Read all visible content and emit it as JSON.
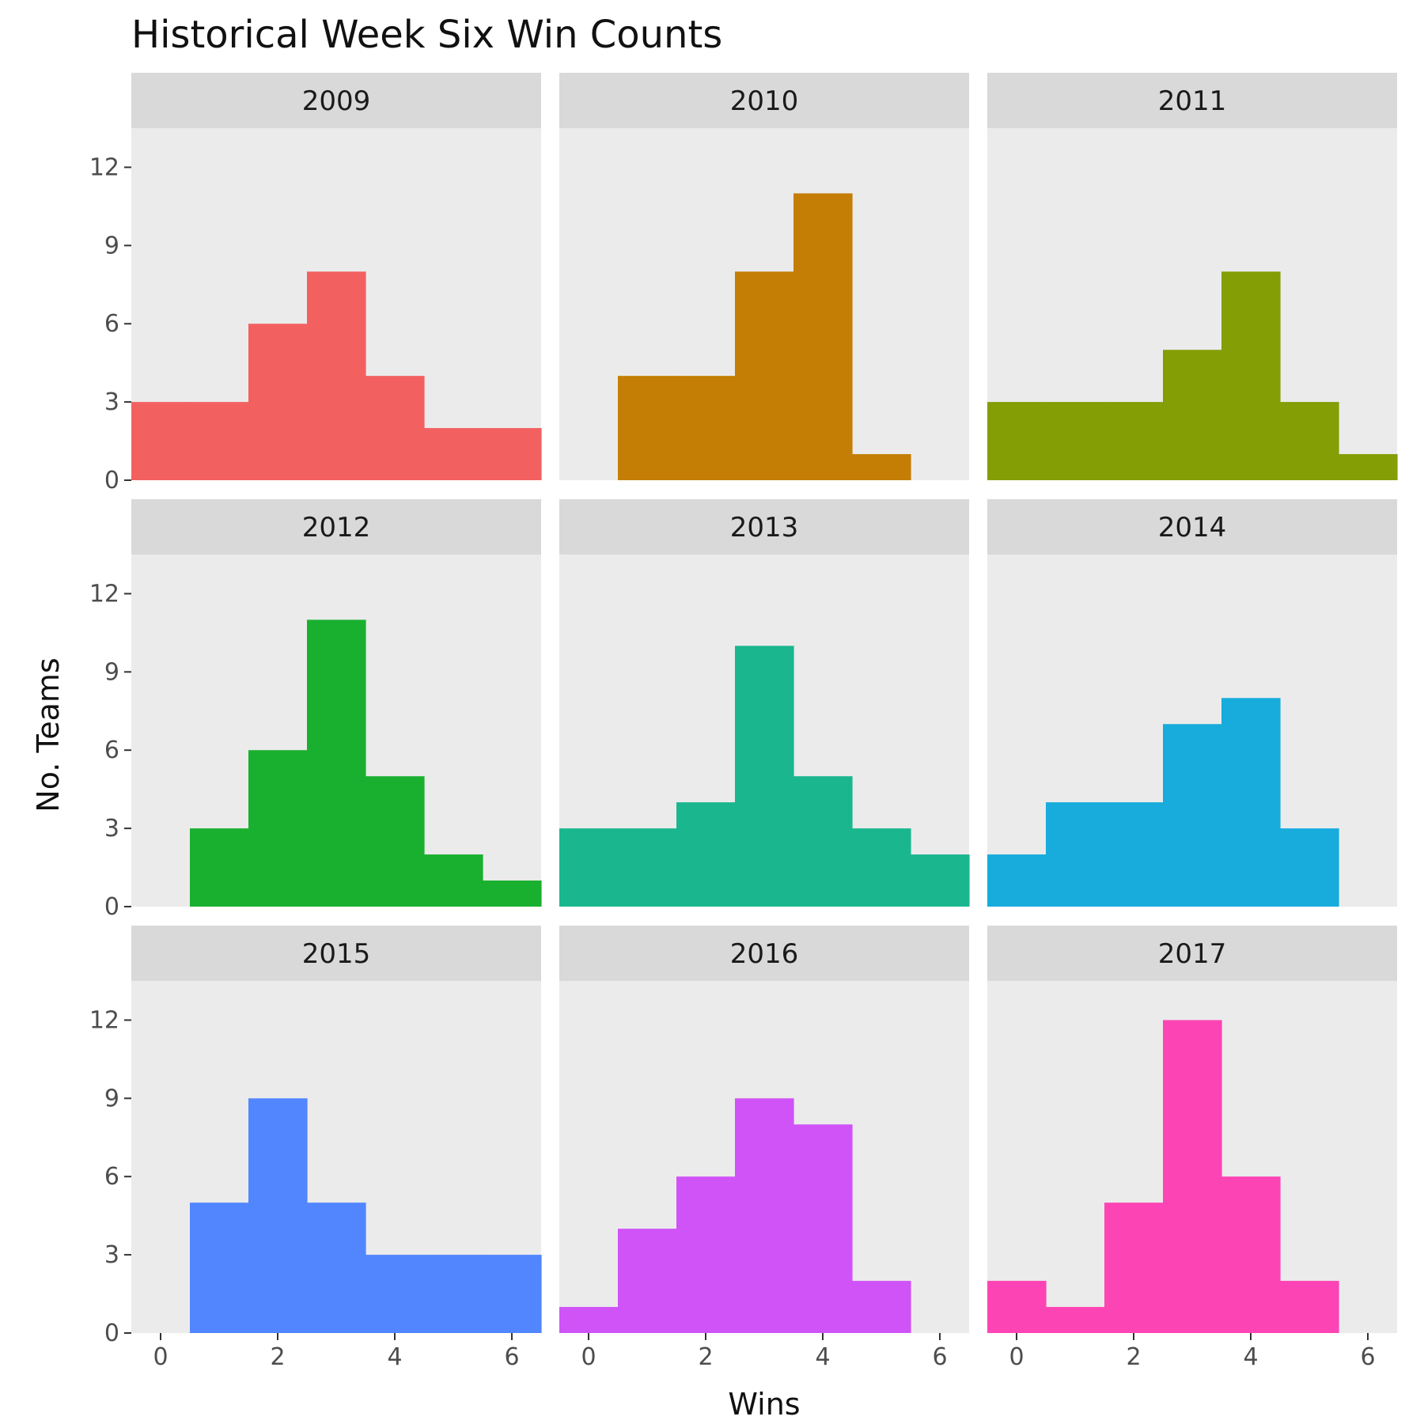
{
  "chart_data": {
    "type": "bar",
    "title": "Historical Week Six Win Counts",
    "xlabel": "Wins",
    "ylabel": "No. Teams",
    "xlim": [
      -0.5,
      6.5
    ],
    "ylim": [
      0,
      13.5
    ],
    "xticks": [
      0,
      2,
      4,
      6
    ],
    "yticks": [
      0,
      3,
      6,
      9,
      12
    ],
    "grid": false,
    "bin_width": 1,
    "categories": [
      0,
      1,
      2,
      3,
      4,
      5,
      6
    ],
    "panels": [
      {
        "name": "2009",
        "color": "#F26160",
        "values": [
          3,
          3,
          6,
          8,
          4,
          2,
          2
        ]
      },
      {
        "name": "2010",
        "color": "#C47E05",
        "values": [
          0,
          4,
          4,
          8,
          11,
          1,
          0
        ]
      },
      {
        "name": "2011",
        "color": "#849E06",
        "values": [
          3,
          3,
          3,
          5,
          8,
          3,
          1
        ]
      },
      {
        "name": "2012",
        "color": "#1AB02F",
        "values": [
          0,
          3,
          6,
          11,
          5,
          2,
          1
        ]
      },
      {
        "name": "2013",
        "color": "#1AB78F",
        "values": [
          3,
          3,
          4,
          10,
          5,
          3,
          2
        ]
      },
      {
        "name": "2014",
        "color": "#17ACDC",
        "values": [
          2,
          4,
          4,
          7,
          8,
          3,
          0
        ]
      },
      {
        "name": "2015",
        "color": "#5186FF",
        "values": [
          0,
          5,
          9,
          5,
          3,
          3,
          3
        ]
      },
      {
        "name": "2016",
        "color": "#D053F7",
        "values": [
          1,
          4,
          6,
          9,
          8,
          2,
          0
        ]
      },
      {
        "name": "2017",
        "color": "#FD44B4",
        "values": [
          2,
          1,
          5,
          12,
          6,
          2,
          0
        ]
      }
    ]
  }
}
